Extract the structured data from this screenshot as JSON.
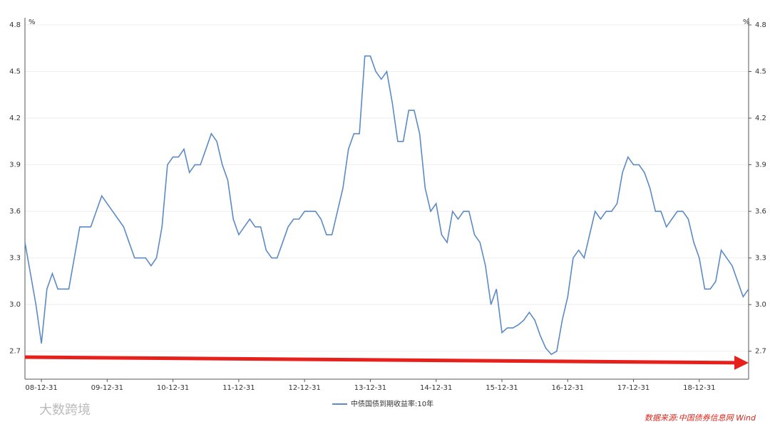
{
  "chart_data": {
    "type": "line",
    "y_unit": "%",
    "y2_unit": "%",
    "legend": "中债国债到期收益率:10年",
    "source": "数据来源:中国债券信息网 Wind",
    "watermark": "大数跨境",
    "ylim": [
      2.52,
      4.8
    ],
    "yticks": [
      2.7,
      {
        "value": 3,
        "label": "3.0"
      },
      3.3,
      3.6,
      3.9,
      4.2,
      4.5,
      4.8
    ],
    "y2lim": [
      2.52,
      4.8
    ],
    "y2ticks": [
      2.7,
      {
        "value": 3,
        "label": "3.0"
      },
      3.3,
      3.6,
      3.9,
      4.2,
      4.5,
      4.8
    ],
    "grid": true,
    "categories": [
      null,
      null,
      null,
      "08-12-31",
      null,
      null,
      null,
      null,
      null,
      null,
      null,
      null,
      null,
      null,
      null,
      "09-12-31",
      null,
      null,
      null,
      null,
      null,
      null,
      null,
      null,
      null,
      null,
      null,
      "10-12-31",
      null,
      null,
      null,
      null,
      null,
      null,
      null,
      null,
      null,
      null,
      null,
      "11-12-31",
      null,
      null,
      null,
      null,
      null,
      null,
      null,
      null,
      null,
      null,
      null,
      "12-12-31",
      null,
      null,
      null,
      null,
      null,
      null,
      null,
      null,
      null,
      null,
      null,
      "13-12-31",
      null,
      null,
      null,
      null,
      null,
      null,
      null,
      null,
      null,
      null,
      null,
      "14-12-31",
      null,
      null,
      null,
      null,
      null,
      null,
      null,
      null,
      null,
      null,
      null,
      "15-12-31",
      null,
      null,
      null,
      null,
      null,
      null,
      null,
      null,
      null,
      null,
      null,
      "16-12-31",
      null,
      null,
      null,
      null,
      null,
      null,
      null,
      null,
      null,
      null,
      null,
      "17-12-31",
      null,
      null,
      null,
      null,
      null,
      null,
      null,
      null,
      null,
      null,
      null,
      "18-12-31",
      null,
      null,
      null,
      null,
      null,
      null,
      null,
      null,
      null
    ],
    "series": [
      {
        "name": "中债国债到期收益率:10年",
        "color": "#5b8ac4",
        "values": [
          3.4,
          3.2,
          3.0,
          2.75,
          3.1,
          3.2,
          3.1,
          3.1,
          3.1,
          3.3,
          3.5,
          3.5,
          3.5,
          3.6,
          3.7,
          3.65,
          3.6,
          3.55,
          3.5,
          3.4,
          3.3,
          3.3,
          3.3,
          3.25,
          3.3,
          3.5,
          3.9,
          3.95,
          3.95,
          4.0,
          3.85,
          3.9,
          3.9,
          4.0,
          4.1,
          4.05,
          3.9,
          3.8,
          3.55,
          3.45,
          3.5,
          3.55,
          3.5,
          3.5,
          3.35,
          3.3,
          3.3,
          3.4,
          3.5,
          3.55,
          3.55,
          3.6,
          3.6,
          3.6,
          3.55,
          3.45,
          3.45,
          3.6,
          3.75,
          4.0,
          4.1,
          4.1,
          4.6,
          4.6,
          4.5,
          4.45,
          4.5,
          4.3,
          4.05,
          4.05,
          4.25,
          4.25,
          4.1,
          3.75,
          3.6,
          3.65,
          3.45,
          3.4,
          3.6,
          3.55,
          3.6,
          3.6,
          3.45,
          3.4,
          3.25,
          3.0,
          3.1,
          2.82,
          2.85,
          2.85,
          2.87,
          2.9,
          2.95,
          2.9,
          2.8,
          2.72,
          2.68,
          2.7,
          2.9,
          3.05,
          3.3,
          3.35,
          3.3,
          3.45,
          3.6,
          3.55,
          3.6,
          3.6,
          3.65,
          3.85,
          3.95,
          3.9,
          3.9,
          3.85,
          3.75,
          3.6,
          3.6,
          3.5,
          3.55,
          3.6,
          3.6,
          3.55,
          3.4,
          3.3,
          3.1,
          3.1,
          3.15,
          3.35,
          3.3,
          3.25,
          3.15,
          3.05,
          3.1
        ]
      }
    ]
  }
}
